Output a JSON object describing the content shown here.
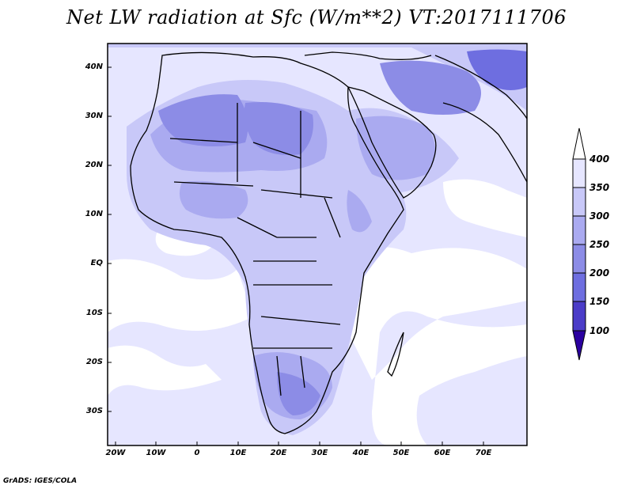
{
  "title": "Net LW radiation at Sfc (W/m**2) VT:2017111706",
  "footer": "GrADS: IGES/COLA",
  "map": {
    "projection": "latlon",
    "lon_range": [
      -23,
      80
    ],
    "lat_range": [
      -37,
      45
    ],
    "lat_labels": [
      "40N",
      "30N",
      "20N",
      "10N",
      "EQ",
      "10S",
      "20S",
      "30S"
    ],
    "lon_labels": [
      "20W",
      "10W",
      "0",
      "10E",
      "20E",
      "30E",
      "40E",
      "50E",
      "60E",
      "70E"
    ]
  },
  "colorbar": {
    "levels": [
      "400",
      "350",
      "300",
      "250",
      "200",
      "150",
      "100"
    ],
    "colors": [
      "#e6e6ff",
      "#c8c8f8",
      "#aaaaf0",
      "#8c8ce6",
      "#6e6ee0",
      "#4b3cc8",
      "#2b00a0"
    ]
  },
  "colors": {
    "background": "#ffffff",
    "ocean_field": "#e6e6ff",
    "coast": "#000000"
  }
}
